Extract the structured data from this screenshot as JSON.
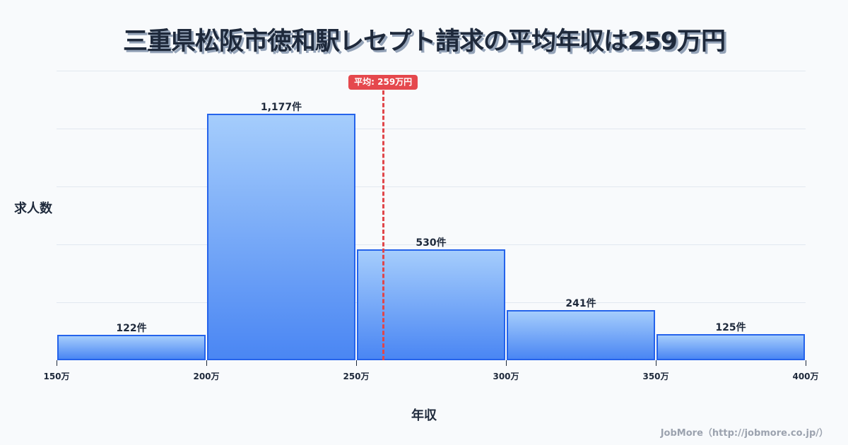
{
  "title": "三重県松阪市徳和駅レセプト請求の平均年収は259万円",
  "credit": "JobMore（http://jobmore.co.jp/）",
  "colors": {
    "bar_fill_top": "#a5cdfc",
    "bar_fill_bottom": "#4a86f3",
    "bar_border": "#2563eb",
    "mean_line": "#e5484d",
    "text": "#1e293b",
    "grid": "#e2e8f0"
  },
  "chart_data": {
    "type": "bar",
    "title": "三重県松阪市徳和駅レセプト請求の平均年収は259万円",
    "xlabel": "年収",
    "ylabel": "求人数",
    "bins": [
      [
        150,
        200
      ],
      [
        200,
        250
      ],
      [
        250,
        300
      ],
      [
        300,
        350
      ],
      [
        350,
        400
      ]
    ],
    "categories": [
      "150万-200万",
      "200万-250万",
      "250万-300万",
      "300万-350万",
      "350万-400万"
    ],
    "values": [
      122,
      1177,
      530,
      241,
      125
    ],
    "value_labels": [
      "122件",
      "1,177件",
      "530件",
      "241件",
      "125件"
    ],
    "x_ticks": [
      "150万",
      "200万",
      "250万",
      "300万",
      "350万",
      "400万"
    ],
    "xlim": [
      150,
      400
    ],
    "ylim": [
      0,
      1383
    ],
    "grid": true,
    "annotations": [
      {
        "type": "vline",
        "x": 259,
        "label": "平均: 259万円",
        "color": "#e5484d",
        "style": "dashed"
      }
    ]
  },
  "ui": {
    "mean_label": "平均: 259万円",
    "y_axis_label": "求人数",
    "x_axis_label": "年収"
  }
}
